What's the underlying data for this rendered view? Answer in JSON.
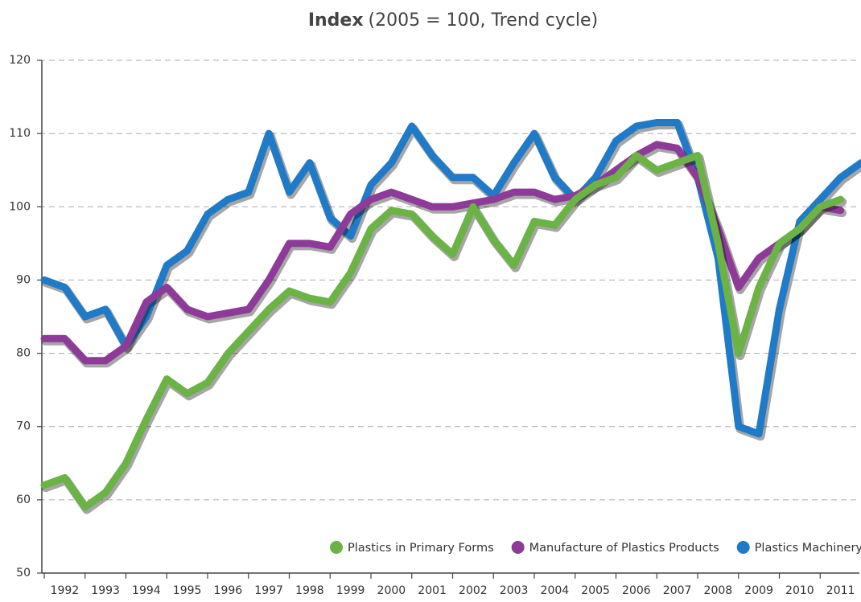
{
  "chart_data": {
    "type": "line",
    "title": "Index",
    "subtitle": "(2005 = 100, Trend cycle)",
    "categories": [
      "1992",
      "1993",
      "1994",
      "1995",
      "1996",
      "1997",
      "1998",
      "1999",
      "2000",
      "2001",
      "2002",
      "2003",
      "2004",
      "2005",
      "2006",
      "2007",
      "2008",
      "2009",
      "2010",
      "2011"
    ],
    "xlim": [
      1992,
      2012
    ],
    "ylim": [
      50,
      120
    ],
    "yticks": [
      50,
      60,
      70,
      80,
      90,
      100,
      110,
      120
    ],
    "grid": true,
    "legend": "bottom-right",
    "series": [
      {
        "name": "Plastics Machinery",
        "color": "#1f7ac8",
        "x": [
          1992,
          1992.5,
          1993,
          1993.5,
          1994,
          1994.5,
          1995,
          1995.5,
          1996,
          1996.5,
          1997,
          1997.5,
          1998,
          1998.5,
          1999,
          1999.5,
          2000,
          2000.5,
          2001,
          2001.5,
          2002,
          2002.5,
          2003,
          2003.5,
          2004,
          2004.5,
          2005,
          2005.5,
          2006,
          2006.5,
          2007,
          2007.5,
          2008,
          2008.5,
          2009,
          2009.5,
          2010,
          2010.5,
          2011,
          2011.5,
          2012
        ],
        "values": [
          90,
          89,
          85,
          86,
          81,
          85,
          92,
          94,
          99,
          101,
          102,
          110,
          102,
          106,
          98.5,
          96,
          103,
          106,
          111,
          107,
          104,
          104,
          101.5,
          106,
          110,
          104,
          101,
          104,
          109,
          111,
          111.5,
          111.5,
          104,
          93,
          70,
          69,
          86,
          98,
          101,
          104,
          106
        ]
      },
      {
        "name": "Manufacture of Plastics Products",
        "color": "#8e3a98",
        "x": [
          1992,
          1992.5,
          1993,
          1993.5,
          1994,
          1994.5,
          1995,
          1995.5,
          1996,
          1996.5,
          1997,
          1997.5,
          1998,
          1998.5,
          1999,
          1999.5,
          2000,
          2000.5,
          2001,
          2001.5,
          2002,
          2002.5,
          2003,
          2003.5,
          2004,
          2004.5,
          2005,
          2005.5,
          2006,
          2006.5,
          2007,
          2007.5,
          2008,
          2008.5,
          2009,
          2009.5,
          2010,
          2010.5,
          2011,
          2011.5
        ],
        "values": [
          82,
          82,
          79,
          79,
          81,
          87,
          89,
          86,
          85,
          85.5,
          86,
          90,
          95,
          95,
          94.5,
          99,
          101,
          102,
          101,
          100,
          100,
          100.5,
          101,
          102,
          102,
          101,
          101.5,
          103,
          105,
          107,
          108.5,
          108,
          104,
          97,
          89,
          93,
          95,
          97,
          100,
          99.5
        ]
      },
      {
        "name": "Plastics in Primary Forms",
        "color": "#6ab344",
        "x": [
          1992,
          1992.5,
          1993,
          1993.5,
          1994,
          1994.5,
          1995,
          1995.5,
          1996,
          1996.5,
          1997,
          1997.5,
          1998,
          1998.5,
          1999,
          1999.5,
          2000,
          2000.5,
          2001,
          2001.5,
          2002,
          2002.5,
          2003,
          2003.5,
          2004,
          2004.5,
          2005,
          2005.5,
          2006,
          2006.5,
          2007,
          2007.5,
          2008,
          2008.5,
          2009,
          2009.5,
          2010,
          2010.5,
          2011,
          2011.5
        ],
        "values": [
          62,
          63,
          59,
          61,
          65,
          71,
          76.5,
          74.5,
          76,
          80,
          83,
          86,
          88.5,
          87.5,
          87,
          91,
          97,
          99.5,
          99,
          96,
          93.5,
          100,
          95.5,
          92,
          98,
          97.5,
          101,
          103,
          104,
          107,
          105,
          106,
          107,
          95,
          80,
          89,
          95,
          97,
          100,
          101
        ]
      }
    ]
  }
}
